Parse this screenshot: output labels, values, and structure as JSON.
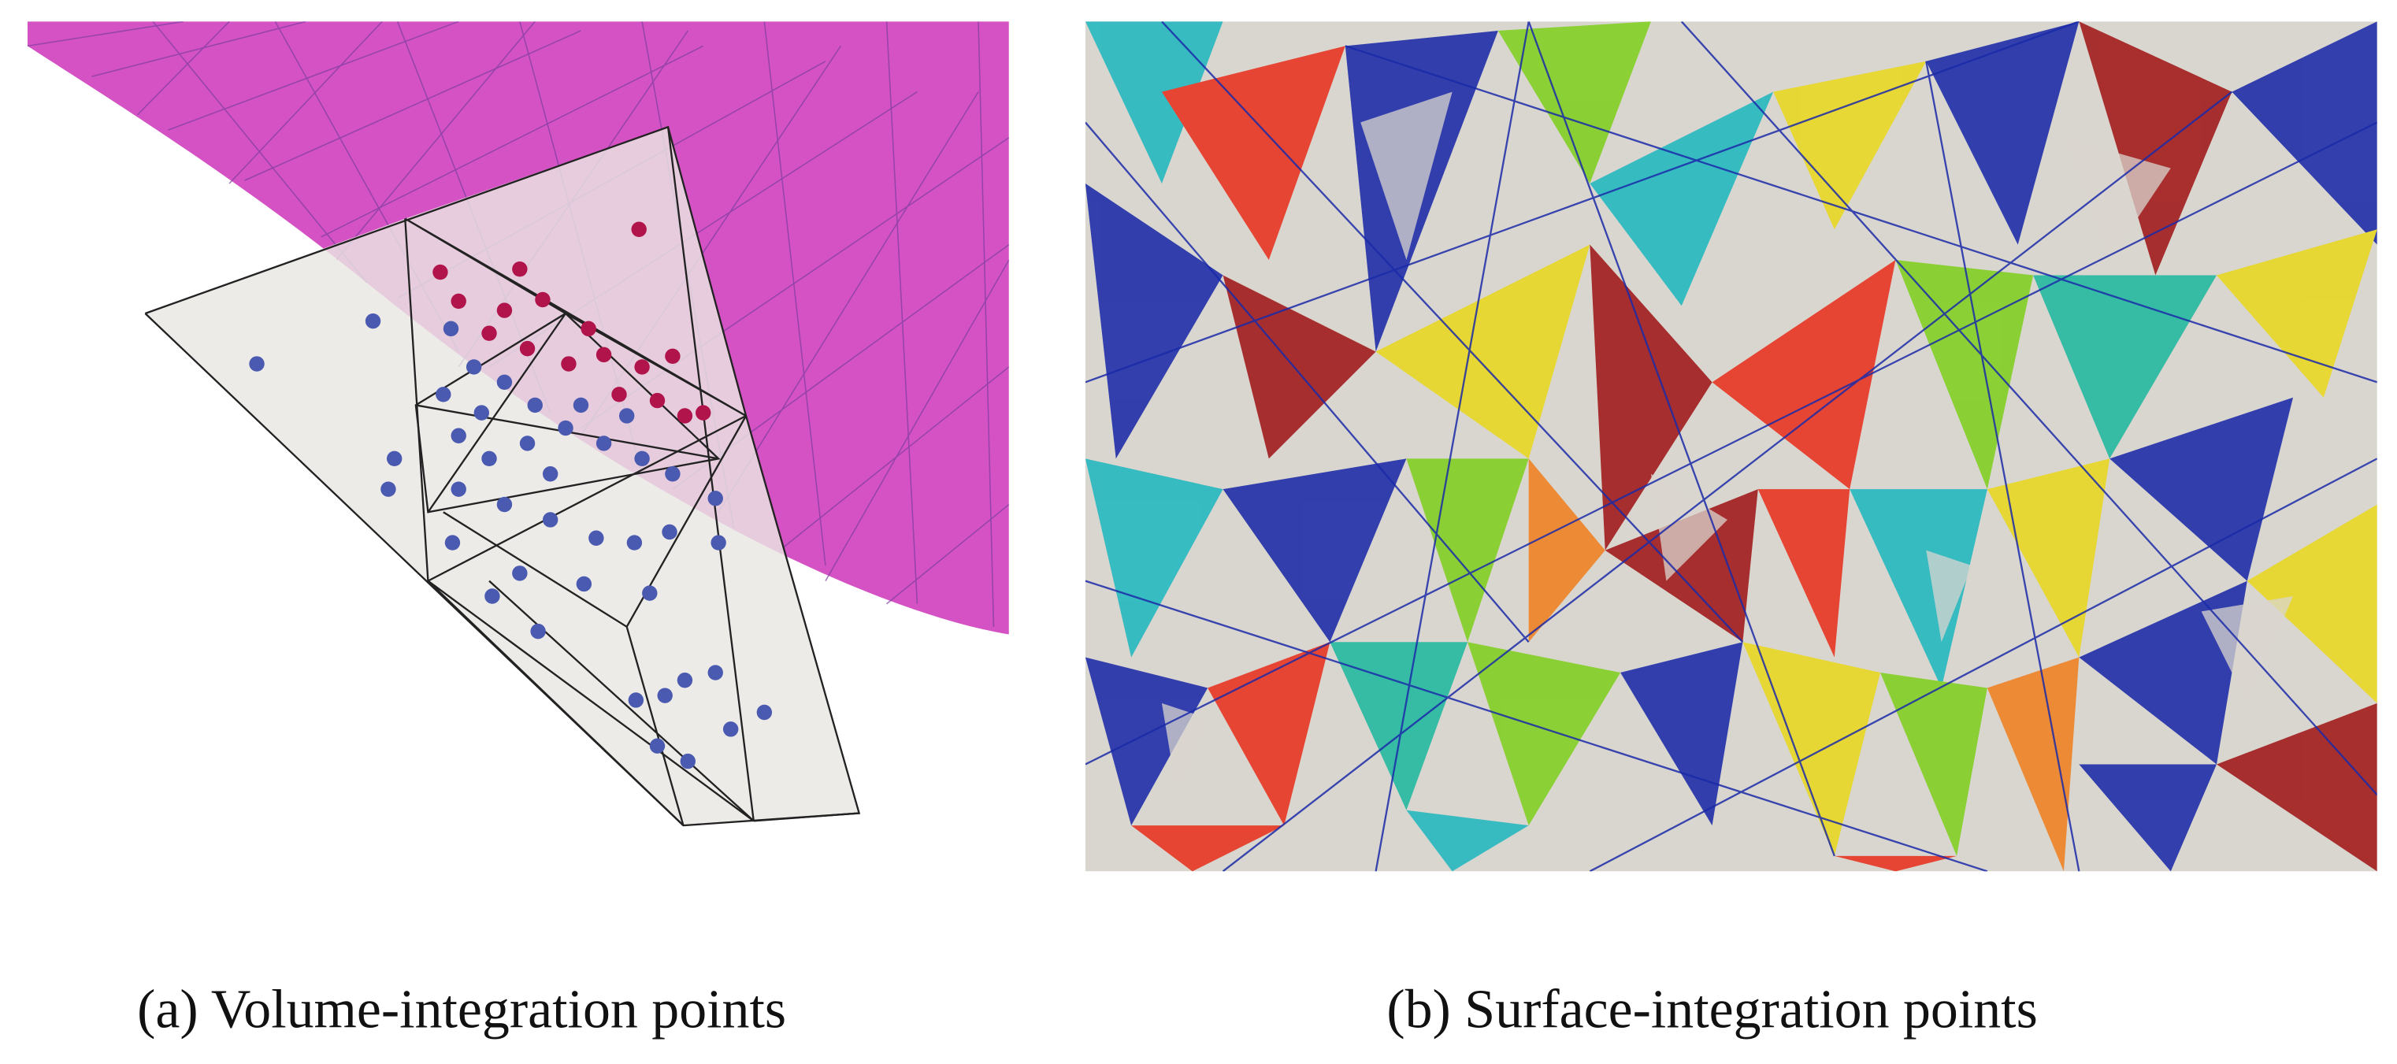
{
  "panels": [
    {
      "caption": "(a) Volume-integration points"
    },
    {
      "caption": "(b) Surface-integration points"
    }
  ]
}
